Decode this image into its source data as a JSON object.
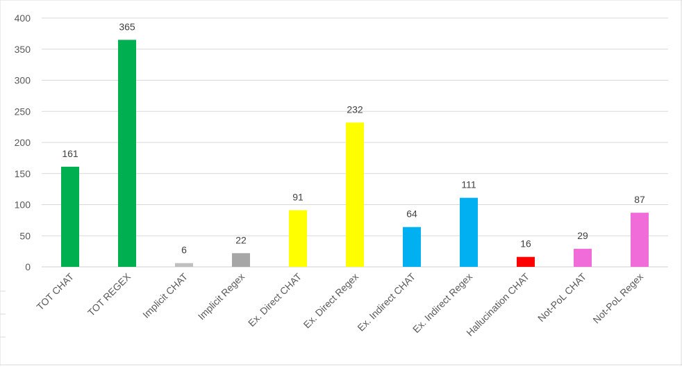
{
  "chart_data": {
    "type": "bar",
    "title": "",
    "xlabel": "",
    "ylabel": "",
    "ylim": [
      0,
      400
    ],
    "yticks": [
      0,
      50,
      100,
      150,
      200,
      250,
      300,
      350,
      400
    ],
    "grid": true,
    "legend": "none",
    "categories": [
      "TOT CHAT",
      "TOT REGEX",
      "Implicit CHAT",
      "Implicit Regex",
      "Ex. Direct CHAT",
      "Ex. Direct Regex",
      "Ex. Indirect CHAT",
      "Ex. Indirect Regex",
      "Hallucination CHAT",
      "Not-PoL CHAT",
      "Not-PoL Regex"
    ],
    "values": [
      161,
      365,
      6,
      22,
      91,
      232,
      64,
      111,
      16,
      29,
      87
    ],
    "colors": [
      "#00b050",
      "#00b050",
      "#bfbfbf",
      "#a6a6a6",
      "#ffff00",
      "#ffff00",
      "#00b0f0",
      "#00b0f0",
      "#ff0000",
      "#f06cd8",
      "#f06cd8"
    ]
  }
}
